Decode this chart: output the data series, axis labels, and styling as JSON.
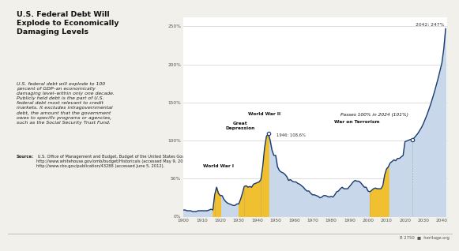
{
  "title": "U.S. Federal Debt Will\nExplode to Economically\nDamaging Levels",
  "subtitle": "U.S. federal debt will explode to 100\npercent of GDP–an economically\ndamaging level–within only one decade.\nPublicly held debt is the part of U.S.\nfederal debt most relevant to credit\nmarkets. It excludes intragovernmental\ndebt, the amount that the government\nowes to specific programs or agencies,\nsuch as the Social Security Trust Fund.",
  "source_bold": "Source:",
  "source_text": " U.S. Office of Management and Budget, Budget of the United States Government, Fiscal Year 2013: Historical Tables (Washington, D.C.: U.S. Government Printing Office, 2012). http://www.whitehouse.gov/omb/budget/Historicals (accessed May 9, 2012); and Congressional Budget Office, 2012 Long-Term Budget Outlook, Alternative Fiscal Scenario, June 5, 2012, http://www.cbo.gov/publication/43288 (accessed June 5, 2012).",
  "footer": "B 2750  ■  heritage.org",
  "bg_color": "#f2f0eb",
  "plot_bg_color": "#ffffff",
  "line_color": "#1a3a6e",
  "fill_color_blue": "#c8d8ea",
  "fill_color_yellow": "#f0c030",
  "ylim": [
    0,
    262
  ],
  "yticks": [
    0,
    50,
    100,
    150,
    200,
    250
  ],
  "ytick_labels": [
    "0%",
    "50%",
    "100%",
    "150%",
    "200%",
    "250%"
  ],
  "xticks": [
    1900,
    1910,
    1920,
    1930,
    1940,
    1950,
    1960,
    1970,
    1980,
    1990,
    2000,
    2010,
    2020,
    2030,
    2040
  ],
  "data": {
    "years": [
      1900,
      1901,
      1902,
      1903,
      1904,
      1905,
      1906,
      1907,
      1908,
      1909,
      1910,
      1911,
      1912,
      1913,
      1914,
      1915,
      1916,
      1917,
      1918,
      1919,
      1920,
      1921,
      1922,
      1923,
      1924,
      1925,
      1926,
      1927,
      1928,
      1929,
      1930,
      1931,
      1932,
      1933,
      1934,
      1935,
      1936,
      1937,
      1938,
      1939,
      1940,
      1941,
      1942,
      1943,
      1944,
      1945,
      1946,
      1947,
      1948,
      1949,
      1950,
      1951,
      1952,
      1953,
      1954,
      1955,
      1956,
      1957,
      1958,
      1959,
      1960,
      1961,
      1962,
      1963,
      1964,
      1965,
      1966,
      1967,
      1968,
      1969,
      1970,
      1971,
      1972,
      1973,
      1974,
      1975,
      1976,
      1977,
      1978,
      1979,
      1980,
      1981,
      1982,
      1983,
      1984,
      1985,
      1986,
      1987,
      1988,
      1989,
      1990,
      1991,
      1992,
      1993,
      1994,
      1995,
      1996,
      1997,
      1998,
      1999,
      2000,
      2001,
      2002,
      2003,
      2004,
      2005,
      2006,
      2007,
      2008,
      2009,
      2010,
      2011,
      2012,
      2013,
      2014,
      2015,
      2016,
      2017,
      2018,
      2019,
      2020,
      2021,
      2022,
      2023,
      2024,
      2025,
      2026,
      2027,
      2028,
      2029,
      2030,
      2031,
      2032,
      2033,
      2034,
      2035,
      2036,
      2037,
      2038,
      2039,
      2040,
      2041,
      2042
    ],
    "values": [
      8,
      8,
      7,
      7,
      7,
      6,
      6,
      6,
      7,
      7,
      7,
      7,
      7,
      7,
      8,
      9,
      8,
      28,
      38,
      30,
      27,
      27,
      22,
      19,
      17,
      16,
      15,
      14,
      14,
      16,
      16,
      22,
      30,
      39,
      40,
      38,
      39,
      38,
      42,
      43,
      44,
      45,
      48,
      65,
      90,
      105,
      108.6,
      100,
      87,
      80,
      80,
      65,
      60,
      58,
      57,
      55,
      52,
      47,
      48,
      46,
      45,
      45,
      43,
      42,
      40,
      38,
      35,
      33,
      33,
      30,
      28,
      28,
      27,
      26,
      24,
      25,
      27,
      27,
      26,
      25,
      26,
      25,
      28,
      32,
      33,
      36,
      38,
      36,
      36,
      36,
      39,
      42,
      45,
      47,
      46,
      46,
      44,
      41,
      38,
      38,
      33,
      32,
      34,
      36,
      37,
      36,
      36,
      36,
      40,
      54,
      62,
      65,
      70,
      72,
      74,
      73,
      76,
      76,
      78,
      80,
      98,
      99,
      100,
      101,
      101,
      103,
      106,
      109,
      113,
      117,
      122,
      128,
      134,
      141,
      148,
      156,
      164,
      173,
      182,
      192,
      202,
      220,
      247
    ]
  },
  "yellow_ranges": [
    [
      1916,
      1920
    ],
    [
      1930,
      1946
    ],
    [
      2001,
      2011
    ]
  ]
}
